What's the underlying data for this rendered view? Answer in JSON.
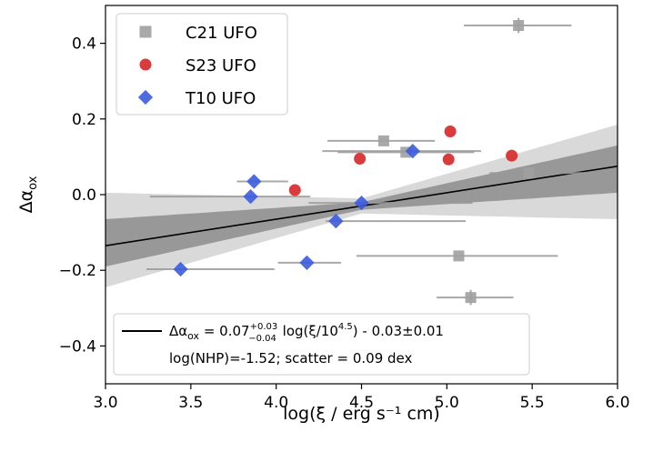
{
  "chart_data": {
    "type": "scatter",
    "xlabel": "log(ξ / erg s⁻¹ cm)",
    "ylabel": "Δα_ox",
    "xlim": [
      3.0,
      6.0
    ],
    "ylim": [
      -0.5,
      0.5
    ],
    "xticks": [
      3.0,
      3.5,
      4.0,
      4.5,
      5.0,
      5.5,
      6.0
    ],
    "xtick_labels": [
      "3.0",
      "3.5",
      "4.0",
      "4.5",
      "5.0",
      "5.5",
      "6.0"
    ],
    "yticks": [
      -0.4,
      -0.2,
      0.0,
      0.2,
      0.4
    ],
    "ytick_labels": [
      "−0.4",
      "−0.2",
      "0.0",
      "0.2",
      "0.4"
    ],
    "grid": false,
    "legend_position": "top-left",
    "series": [
      {
        "name": "C21 UFO",
        "marker": "square",
        "color": "#a0a0a0",
        "points": [
          {
            "x": 5.42,
            "y": 0.447,
            "xerr": [
              0.32,
              0.31
            ],
            "yerr": [
              0.02,
              0.02
            ]
          },
          {
            "x": 4.63,
            "y": 0.142,
            "xerr": [
              0.33,
              0.3
            ]
          },
          {
            "x": 4.76,
            "y": 0.112,
            "xerr": [
              0.4,
              0.4
            ]
          },
          {
            "x": 5.48,
            "y": 0.057,
            "xerr": [
              0.23,
              0.38
            ]
          },
          {
            "x": 5.07,
            "y": -0.162,
            "xerr": [
              0.6,
              0.58
            ]
          },
          {
            "x": 5.14,
            "y": -0.272,
            "xerr": [
              0.2,
              0.25
            ],
            "yerr": [
              0.02,
              0.02
            ]
          }
        ]
      },
      {
        "name": "S23 UFO",
        "marker": "circle",
        "color": "#d62728",
        "points": [
          {
            "x": 4.11,
            "y": 0.012
          },
          {
            "x": 4.49,
            "y": 0.095
          },
          {
            "x": 5.01,
            "y": 0.093
          },
          {
            "x": 5.02,
            "y": 0.167
          },
          {
            "x": 5.38,
            "y": 0.103
          }
        ]
      },
      {
        "name": "T10 UFO",
        "marker": "diamond",
        "color": "#3b5bdb",
        "points": [
          {
            "x": 3.44,
            "y": -0.197,
            "xerr": [
              0.2,
              0.55
            ]
          },
          {
            "x": 3.85,
            "y": -0.005,
            "xerr": [
              0.59,
              0.35
            ]
          },
          {
            "x": 3.87,
            "y": 0.035,
            "xerr": [
              0.1,
              0.2
            ]
          },
          {
            "x": 4.18,
            "y": -0.18,
            "xerr": [
              0.17,
              0.2
            ]
          },
          {
            "x": 4.35,
            "y": -0.07,
            "xerr": [
              0.06,
              0.76
            ]
          },
          {
            "x": 4.5,
            "y": -0.022,
            "xerr": [
              0.31,
              0.65
            ]
          },
          {
            "x": 4.8,
            "y": 0.115,
            "xerr": [
              0.53,
              0.4
            ]
          }
        ]
      }
    ],
    "fit": {
      "slope": 0.07,
      "slope_err_plus": 0.03,
      "slope_err_minus": 0.04,
      "intercept": -0.03,
      "intercept_err": 0.01,
      "pivot": 4.5,
      "line_color": "#000000",
      "inner_band_color": "#8c8c8c",
      "outer_band_color": "#d9d9d9"
    },
    "annotation": {
      "legend_line_label_prefix": "Δα",
      "legend_line_label_sub": "ox",
      "legend_line_label_eq": " = 0.07",
      "legend_line_label_sup": "+0.03",
      "legend_line_label_lower": "−0.04",
      "legend_line_label_mid": " log(ξ/10",
      "legend_line_label_exp": "4.5",
      "legend_line_label_end": ") - 0.03±0.01",
      "stats": "log(NHP)=-1.52;   scatter = 0.09 dex"
    }
  }
}
